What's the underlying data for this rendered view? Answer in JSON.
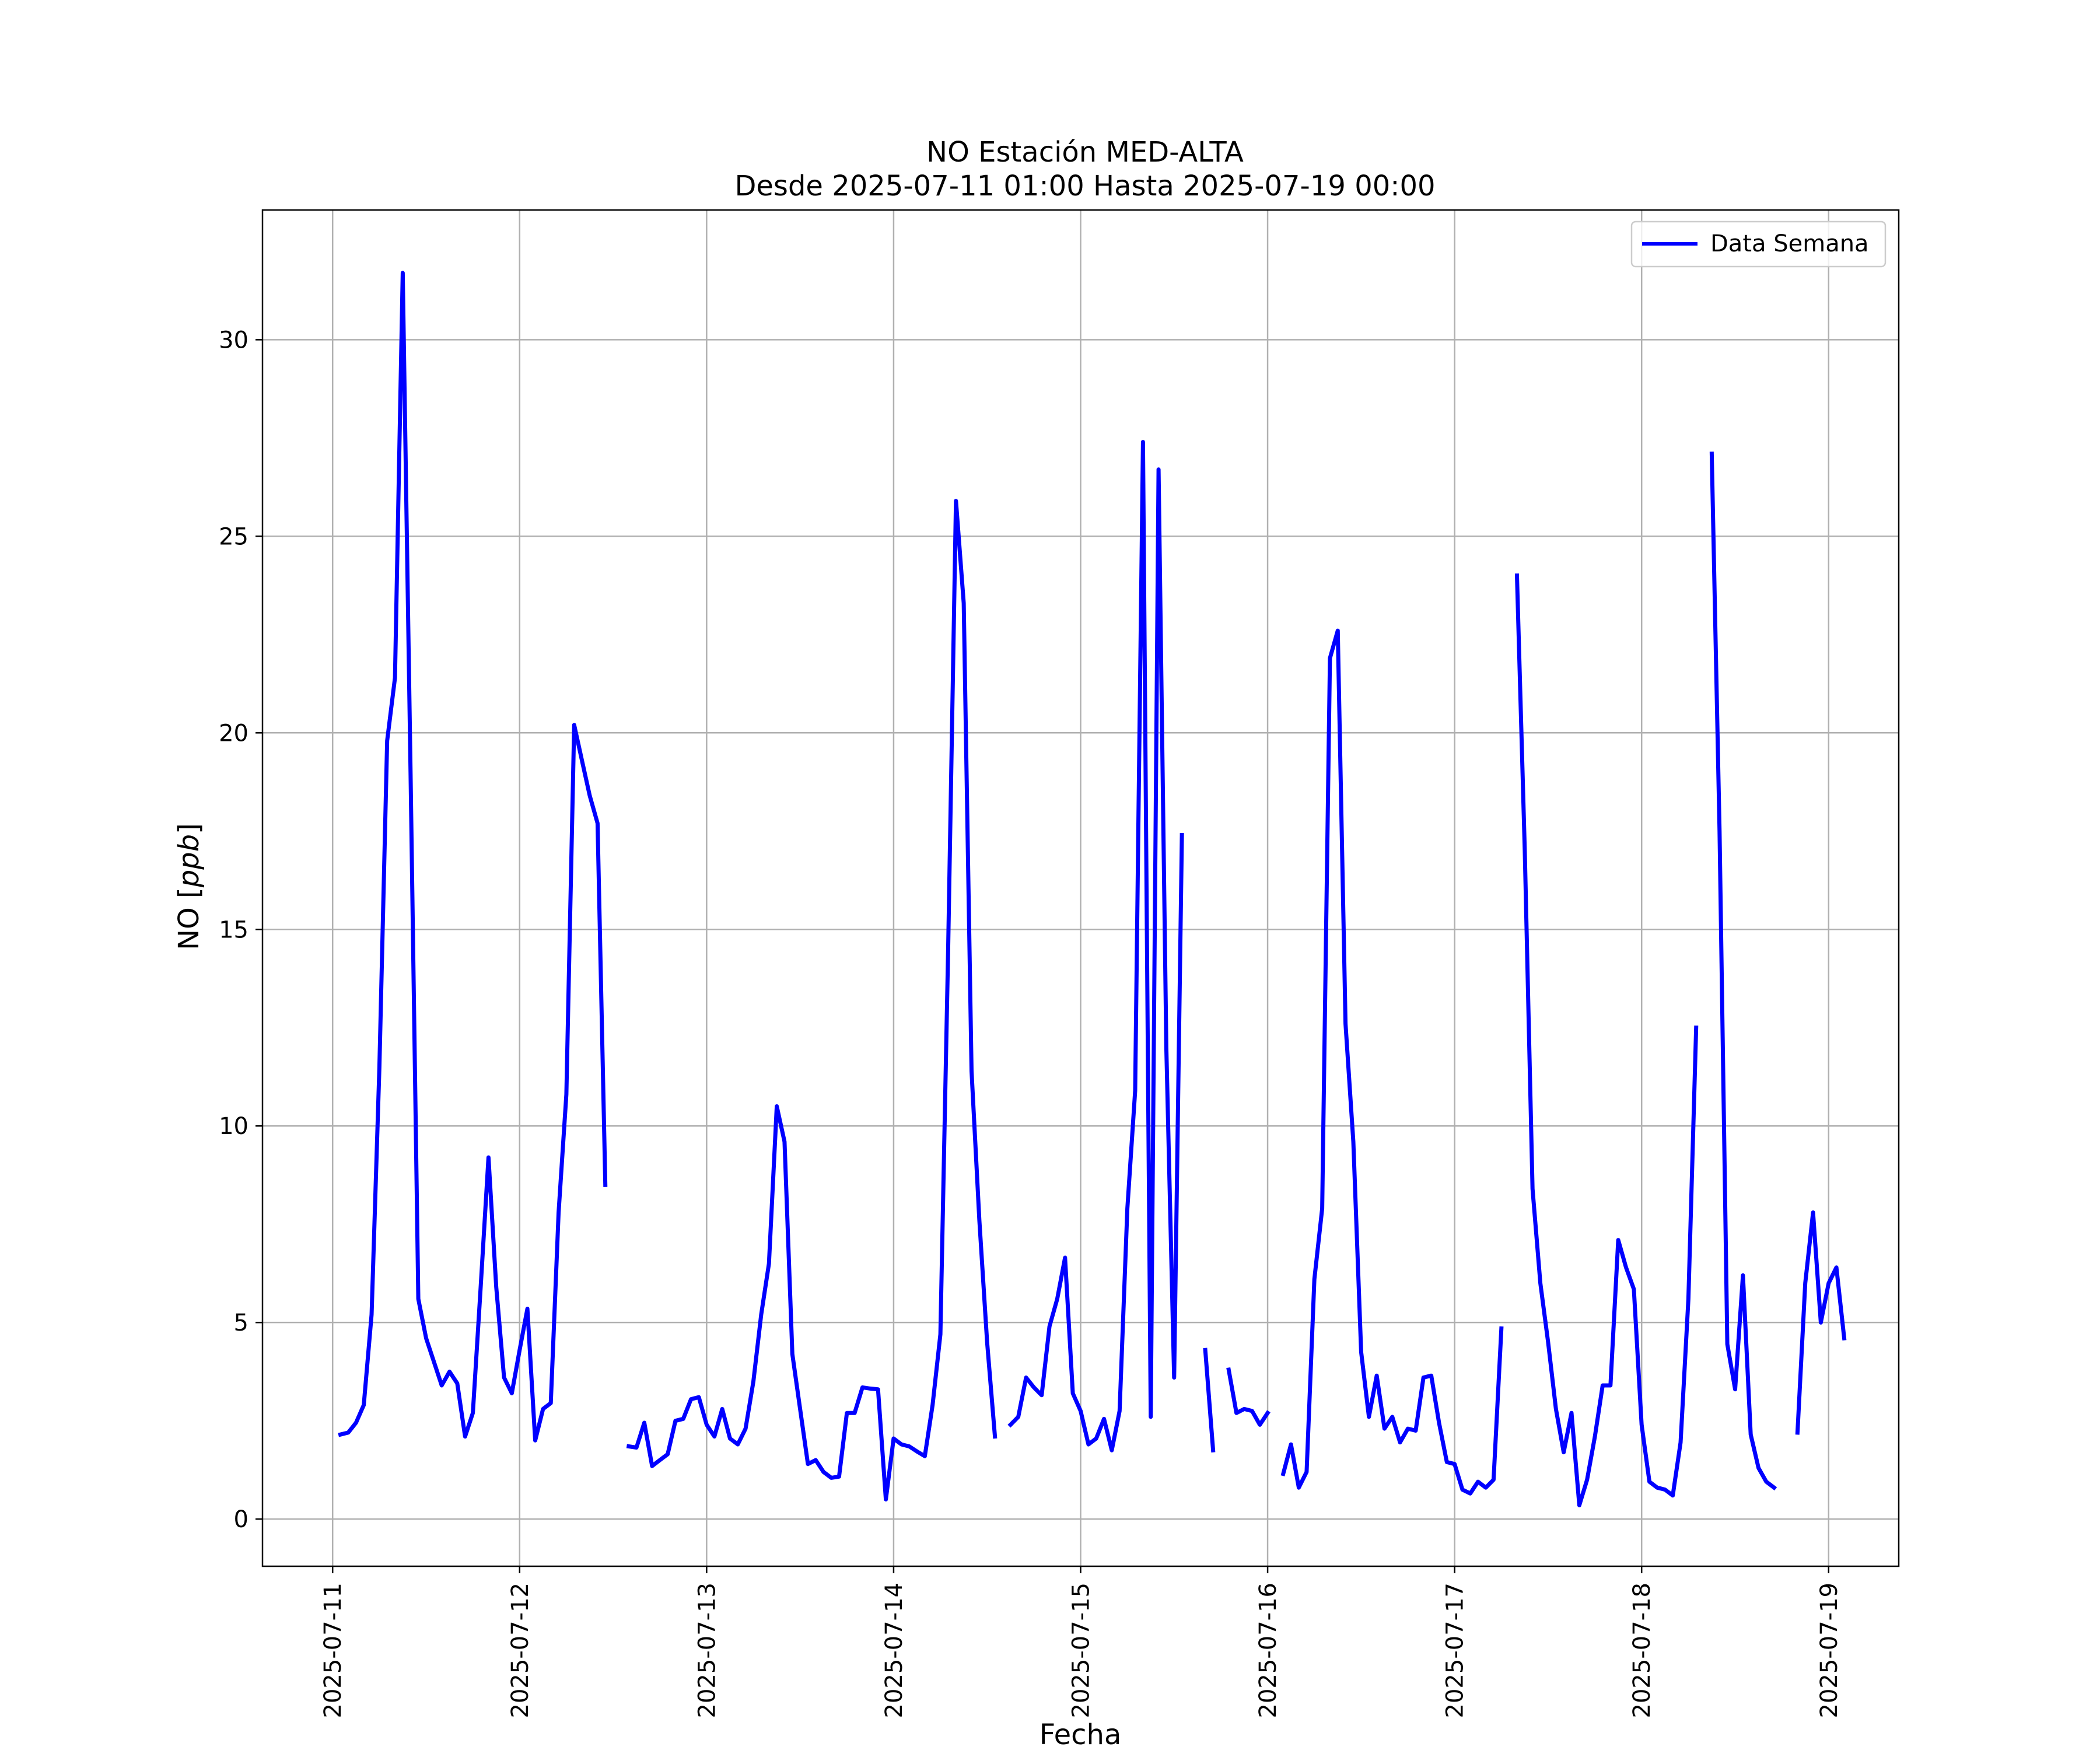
{
  "chart_data": {
    "type": "line",
    "title_line1": "NO Estación MED-ALTA",
    "title_line2": "Desde 2025-07-11 01:00 Hasta 2025-07-19 00:00",
    "xlabel": "Fecha",
    "ylabel_prefix": "NO [",
    "ylabel_unit": "ppb",
    "ylabel_suffix": "]",
    "x_tick_labels": [
      "2025-07-11",
      "2025-07-12",
      "2025-07-13",
      "2025-07-14",
      "2025-07-15",
      "2025-07-16",
      "2025-07-17",
      "2025-07-18",
      "2025-07-19"
    ],
    "y_ticks": [
      0,
      5,
      10,
      15,
      20,
      25,
      30
    ],
    "xlim": [
      "2025-07-10T15:00",
      "2025-07-19T09:00"
    ],
    "ylim": [
      -1.2,
      33.3
    ],
    "grid": true,
    "legend_position": "top-right",
    "colors": {
      "line": "#0000ff",
      "grid": "#b0b0b0",
      "axes": "#000000"
    },
    "series": [
      {
        "name": "Data Semana",
        "x_start": "2025-07-11T01:00",
        "x_step_hours": 1,
        "y": [
          2.15,
          2.2,
          2.45,
          2.9,
          5.2,
          11.5,
          19.8,
          21.4,
          31.7,
          19.0,
          5.6,
          4.6,
          4.0,
          3.4,
          3.75,
          3.45,
          2.1,
          2.7,
          5.9,
          9.2,
          5.9,
          3.6,
          3.2,
          4.3,
          5.35,
          2.0,
          2.8,
          2.95,
          7.8,
          10.8,
          20.2,
          19.3,
          18.4,
          17.7,
          8.5,
          null,
          null,
          1.85,
          1.82,
          2.45,
          1.35,
          1.5,
          1.65,
          2.5,
          2.55,
          3.05,
          3.1,
          2.4,
          2.1,
          2.8,
          2.05,
          1.9,
          2.3,
          3.5,
          5.2,
          6.5,
          10.5,
          9.6,
          4.2,
          2.8,
          1.4,
          1.5,
          1.2,
          1.05,
          1.08,
          2.7,
          2.7,
          3.35,
          3.32,
          3.3,
          0.5,
          2.05,
          1.9,
          1.85,
          1.72,
          1.6,
          2.9,
          4.7,
          14.5,
          25.9,
          23.3,
          11.4,
          7.6,
          4.5,
          2.1,
          null,
          2.4,
          2.6,
          3.6,
          3.35,
          3.15,
          4.9,
          5.6,
          6.65,
          3.2,
          2.75,
          1.9,
          2.05,
          2.55,
          1.75,
          2.75,
          7.9,
          10.9,
          27.4,
          2.6,
          26.7,
          12.0,
          3.6,
          17.4,
          null,
          null,
          4.3,
          1.75,
          null,
          3.8,
          2.7,
          2.8,
          2.75,
          2.4,
          2.7,
          null,
          1.15,
          1.9,
          0.8,
          1.2,
          6.1,
          7.9,
          21.9,
          22.6,
          12.6,
          9.6,
          4.25,
          2.6,
          3.65,
          2.3,
          2.6,
          1.95,
          2.3,
          2.25,
          3.6,
          3.65,
          2.45,
          1.45,
          1.4,
          0.75,
          0.65,
          0.95,
          0.8,
          1.0,
          4.85,
          null,
          24.0,
          17.0,
          8.4,
          6.0,
          4.5,
          2.8,
          1.7,
          2.7,
          0.35,
          1.0,
          2.1,
          3.4,
          3.4,
          7.1,
          6.4,
          5.85,
          2.4,
          0.95,
          0.8,
          0.75,
          0.6,
          1.95,
          5.6,
          12.5,
          null,
          27.1,
          17.5,
          4.45,
          3.3,
          6.2,
          2.15,
          1.3,
          0.95,
          0.8,
          null,
          null,
          2.2,
          6.0,
          7.8,
          5.0,
          6.0,
          6.4,
          4.6
        ]
      }
    ]
  }
}
